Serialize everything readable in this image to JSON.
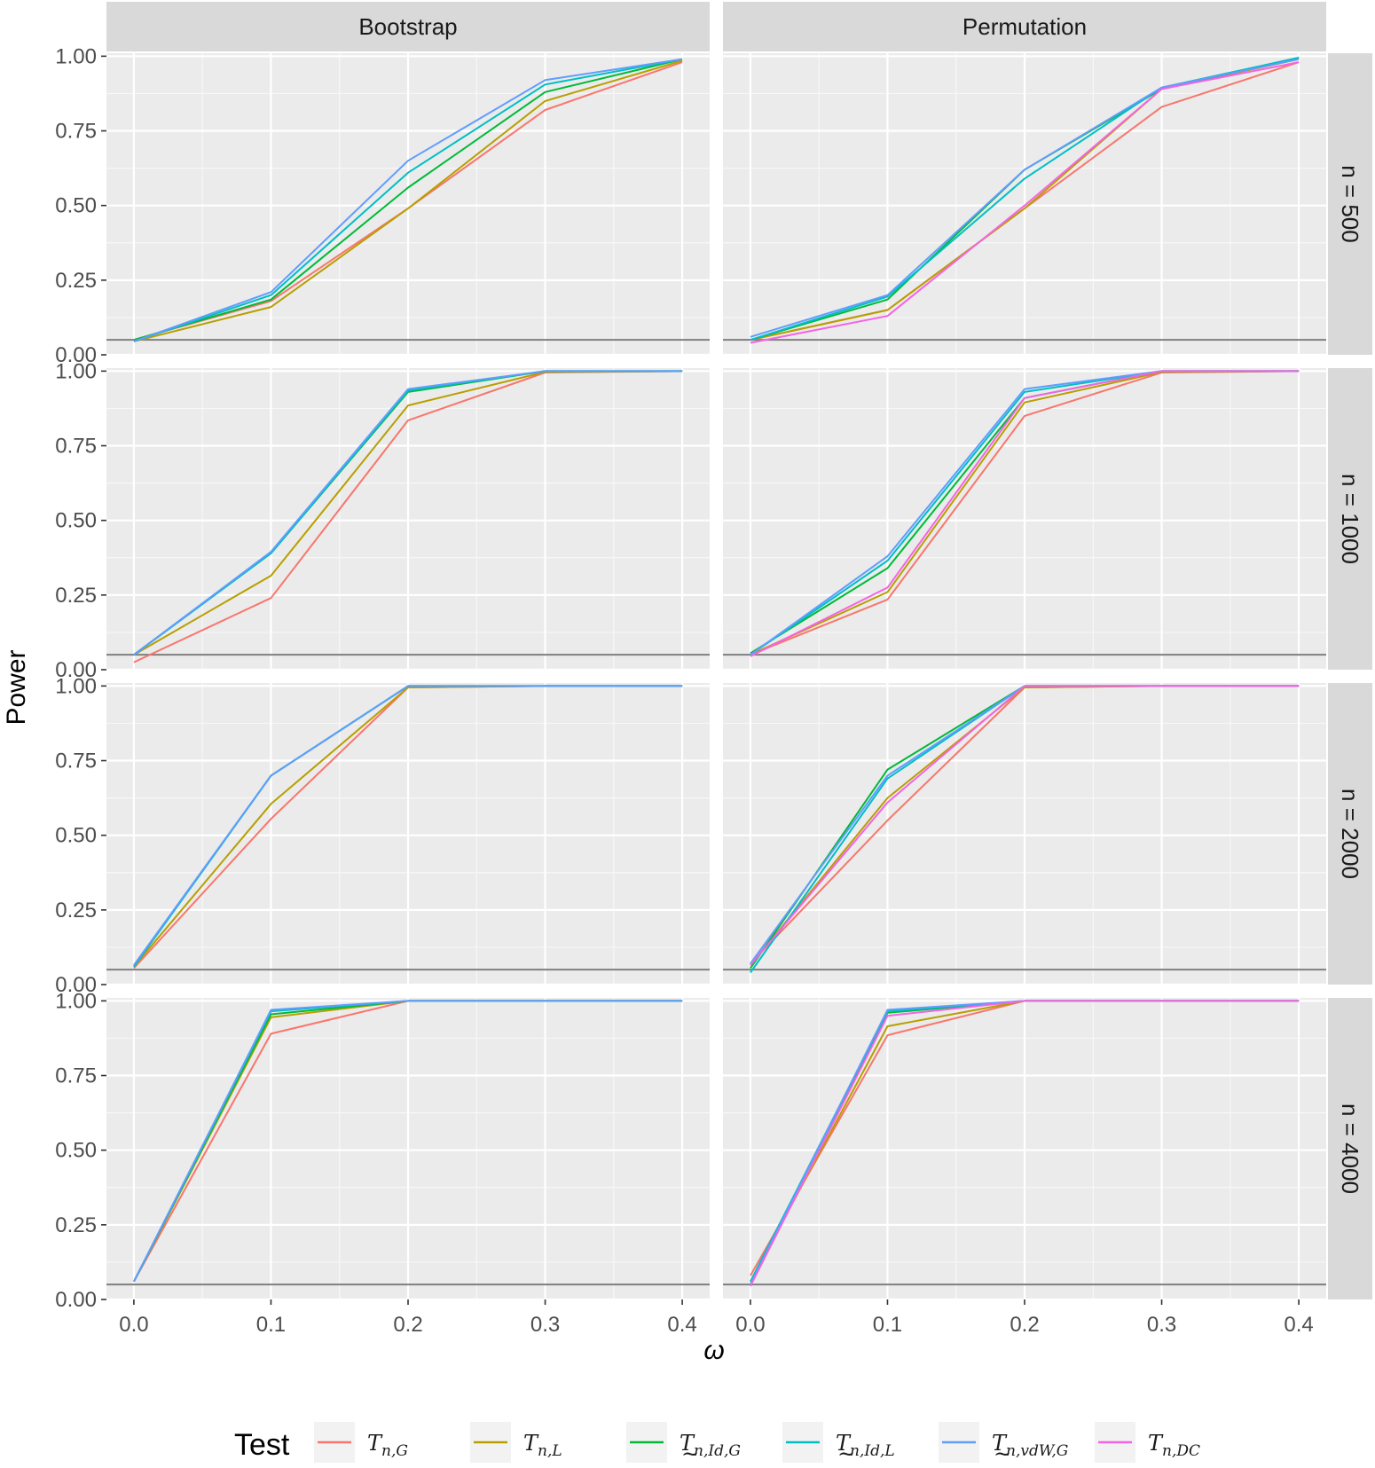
{
  "chart_data": {
    "type": "line",
    "facet_columns": [
      "Bootstrap",
      "Permutation"
    ],
    "facet_rows": [
      "n = 500",
      "n = 1000",
      "n = 2000",
      "n = 4000"
    ],
    "x": [
      0.0,
      0.1,
      0.2,
      0.3,
      0.4
    ],
    "x_ticks": [
      "0.0",
      "0.1",
      "0.2",
      "0.3",
      "0.4"
    ],
    "y_ticks": [
      "0.00",
      "0.25",
      "0.50",
      "0.75",
      "1.00"
    ],
    "xlim": [
      -0.02,
      0.42
    ],
    "ylim": [
      0,
      1.01
    ],
    "xlabel": "ω",
    "ylabel": "Power",
    "reference_line": 0.05,
    "legend": {
      "title": "Test",
      "position": "bottom",
      "entries": [
        {
          "key": "TnG",
          "label": "T n,G",
          "color": "#F8766D"
        },
        {
          "key": "TnL",
          "label": "T n,L",
          "color": "#B79F00"
        },
        {
          "key": "TnIdG",
          "label": "T n,Id,G",
          "color": "#00BA38"
        },
        {
          "key": "TnIdL",
          "label": "T n,Id,L",
          "color": "#00BFC4"
        },
        {
          "key": "TnvdWG",
          "label": "T n,vdW,G",
          "color": "#619CFF"
        },
        {
          "key": "TnDC",
          "label": "T n,DC",
          "color": "#F564E3"
        }
      ]
    },
    "panels": [
      {
        "row": 0,
        "col": 0,
        "series": {
          "TnG": [
            0.05,
            0.18,
            0.49,
            0.82,
            0.98
          ],
          "TnL": [
            0.045,
            0.16,
            0.49,
            0.85,
            0.985
          ],
          "TnIdG": [
            0.05,
            0.185,
            0.56,
            0.88,
            0.99
          ],
          "TnIdL": [
            0.045,
            0.2,
            0.61,
            0.905,
            0.99
          ],
          "TnvdWG": [
            0.045,
            0.21,
            0.65,
            0.92,
            0.99
          ]
        }
      },
      {
        "row": 0,
        "col": 1,
        "series": {
          "TnG": [
            0.05,
            0.15,
            0.49,
            0.83,
            0.98
          ],
          "TnL": [
            0.05,
            0.15,
            0.49,
            0.89,
            0.99
          ],
          "TnIdG": [
            0.05,
            0.185,
            0.62,
            0.89,
            0.995
          ],
          "TnIdL": [
            0.05,
            0.195,
            0.59,
            0.895,
            0.995
          ],
          "TnvdWG": [
            0.06,
            0.2,
            0.62,
            0.895,
            0.99
          ],
          "TnDC": [
            0.04,
            0.13,
            0.5,
            0.89,
            0.98
          ]
        }
      },
      {
        "row": 1,
        "col": 0,
        "series": {
          "TnG": [
            0.025,
            0.24,
            0.835,
            0.995,
            1.0
          ],
          "TnL": [
            0.05,
            0.315,
            0.885,
            0.997,
            1.0
          ],
          "TnIdG": [
            0.05,
            0.39,
            0.93,
            1.0,
            1.0
          ],
          "TnIdL": [
            0.05,
            0.39,
            0.935,
            1.0,
            1.0
          ],
          "TnvdWG": [
            0.05,
            0.395,
            0.94,
            1.0,
            1.0
          ]
        }
      },
      {
        "row": 1,
        "col": 1,
        "series": {
          "TnG": [
            0.05,
            0.235,
            0.85,
            0.995,
            1.0
          ],
          "TnL": [
            0.05,
            0.26,
            0.895,
            0.997,
            1.0
          ],
          "TnIdG": [
            0.055,
            0.34,
            0.91,
            1.0,
            1.0
          ],
          "TnIdL": [
            0.05,
            0.365,
            0.93,
            1.0,
            1.0
          ],
          "TnvdWG": [
            0.05,
            0.38,
            0.94,
            1.0,
            1.0
          ],
          "TnDC": [
            0.045,
            0.275,
            0.91,
            1.0,
            1.0
          ]
        }
      },
      {
        "row": 2,
        "col": 0,
        "series": {
          "TnG": [
            0.055,
            0.555,
            0.995,
            1.0,
            1.0
          ],
          "TnL": [
            0.06,
            0.605,
            0.995,
            1.0,
            1.0
          ],
          "TnIdG": [
            0.06,
            0.7,
            1.0,
            1.0,
            1.0
          ],
          "TnIdL": [
            0.06,
            0.7,
            1.0,
            1.0,
            1.0
          ],
          "TnvdWG": [
            0.065,
            0.7,
            1.0,
            1.0,
            1.0
          ]
        }
      },
      {
        "row": 2,
        "col": 1,
        "series": {
          "TnG": [
            0.07,
            0.55,
            0.995,
            1.0,
            1.0
          ],
          "TnL": [
            0.065,
            0.625,
            0.995,
            1.0,
            1.0
          ],
          "TnIdG": [
            0.055,
            0.72,
            1.0,
            1.0,
            1.0
          ],
          "TnIdL": [
            0.04,
            0.69,
            1.0,
            1.0,
            1.0
          ],
          "TnvdWG": [
            0.07,
            0.7,
            1.0,
            1.0,
            1.0
          ],
          "TnDC": [
            0.065,
            0.61,
            1.0,
            1.0,
            1.0
          ]
        }
      },
      {
        "row": 3,
        "col": 0,
        "series": {
          "TnG": [
            0.06,
            0.89,
            1.0,
            1.0,
            1.0
          ],
          "TnL": [
            0.06,
            0.945,
            1.0,
            1.0,
            1.0
          ],
          "TnIdG": [
            0.06,
            0.955,
            1.0,
            1.0,
            1.0
          ],
          "TnIdL": [
            0.06,
            0.965,
            1.0,
            1.0,
            1.0
          ],
          "TnvdWG": [
            0.06,
            0.97,
            1.0,
            1.0,
            1.0
          ]
        }
      },
      {
        "row": 3,
        "col": 1,
        "series": {
          "TnG": [
            0.08,
            0.885,
            1.0,
            1.0,
            1.0
          ],
          "TnL": [
            0.06,
            0.915,
            1.0,
            1.0,
            1.0
          ],
          "TnIdG": [
            0.05,
            0.96,
            1.0,
            1.0,
            1.0
          ],
          "TnIdL": [
            0.06,
            0.965,
            1.0,
            1.0,
            1.0
          ],
          "TnvdWG": [
            0.05,
            0.97,
            1.0,
            1.0,
            1.0
          ],
          "TnDC": [
            0.045,
            0.95,
            1.0,
            1.0,
            1.0
          ]
        }
      }
    ]
  }
}
